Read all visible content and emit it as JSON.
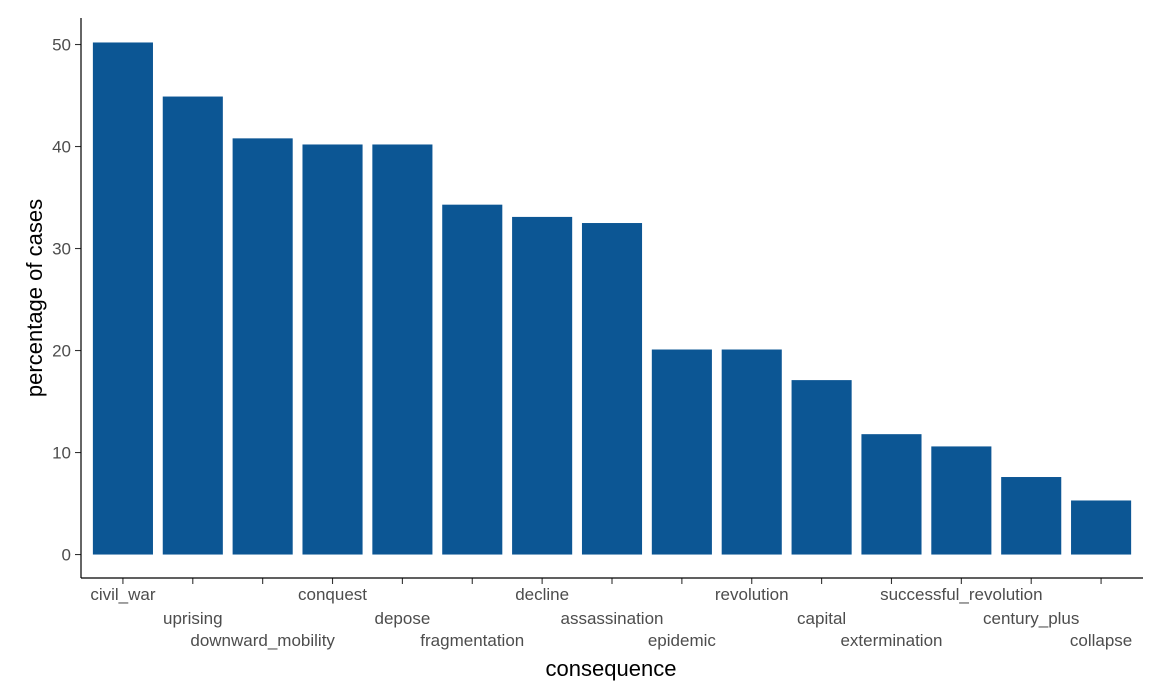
{
  "chart_data": {
    "type": "bar",
    "categories": [
      "civil_war",
      "uprising",
      "downward_mobility",
      "conquest",
      "depose",
      "fragmentation",
      "decline",
      "assassination",
      "epidemic",
      "revolution",
      "capital",
      "extermination",
      "successful_revolution",
      "century_plus",
      "collapse"
    ],
    "values": [
      50.2,
      44.9,
      40.8,
      40.2,
      40.2,
      34.3,
      33.1,
      32.5,
      20.1,
      20.1,
      17.1,
      11.8,
      10.6,
      7.6,
      5.3
    ],
    "xlabel": "consequence",
    "ylabel": "percentage of cases",
    "ylim": [
      -2.3,
      52.6
    ],
    "yticks": [
      0,
      10,
      20,
      30,
      40,
      50
    ],
    "bar_color": "#0c5694",
    "grid": false,
    "legend": "none"
  }
}
